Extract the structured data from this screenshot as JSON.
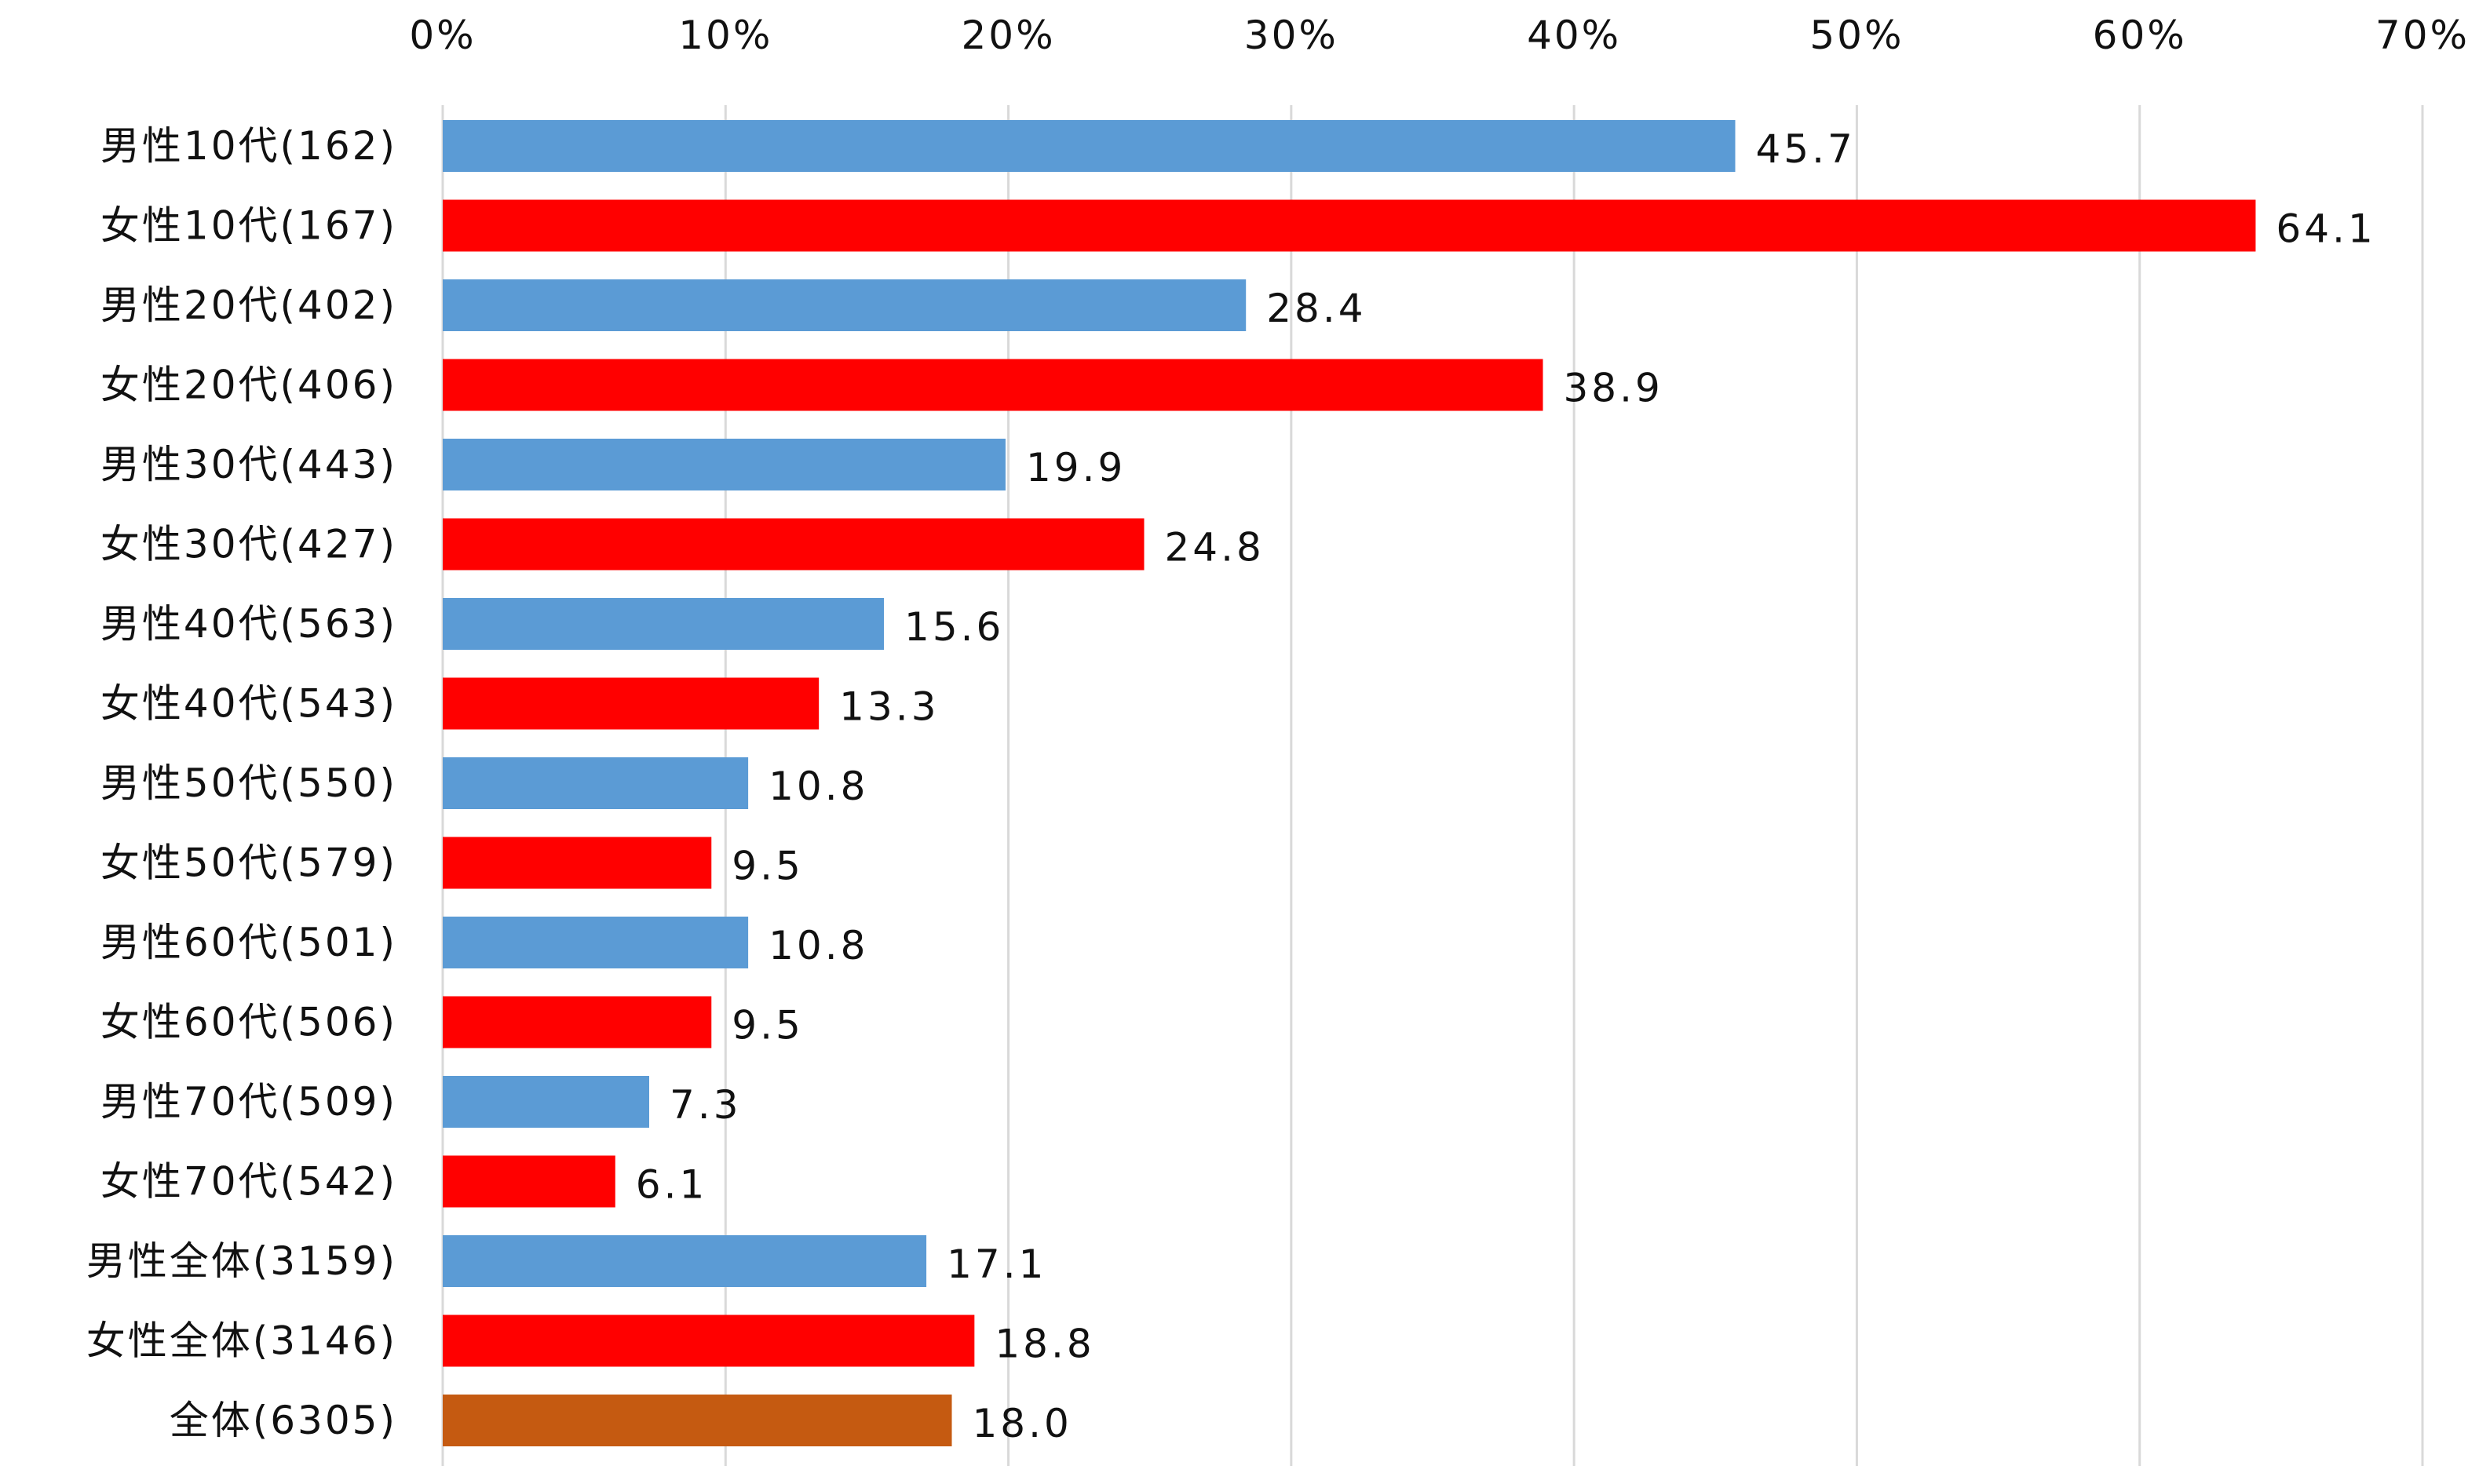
{
  "chart_data": {
    "type": "bar",
    "orientation": "horizontal",
    "title": "",
    "xlabel": "",
    "ylabel": "",
    "xlim": [
      0,
      70
    ],
    "x_ticks": [
      "0%",
      "10%",
      "20%",
      "30%",
      "40%",
      "50%",
      "60%",
      "70%"
    ],
    "x_axis_position": "top",
    "grid": "vertical",
    "legend": "none",
    "categories": [
      "男性10代(162)",
      "女性10代(167)",
      "男性20代(402)",
      "女性20代(406)",
      "男性30代(443)",
      "女性30代(427)",
      "男性40代(563)",
      "女性40代(543)",
      "男性50代(550)",
      "女性50代(579)",
      "男性60代(501)",
      "女性60代(506)",
      "男性70代(509)",
      "女性70代(542)",
      "男性全体(3159)",
      "女性全体(3146)",
      "全体(6305)"
    ],
    "values": [
      45.7,
      64.1,
      28.4,
      38.9,
      19.9,
      24.8,
      15.6,
      13.3,
      10.8,
      9.5,
      10.8,
      9.5,
      7.3,
      6.1,
      17.1,
      18.8,
      18.0
    ],
    "value_labels": [
      "45.7",
      "64.1",
      "28.4",
      "38.9",
      "19.9",
      "24.8",
      "15.6",
      "13.3",
      "10.8",
      "9.5",
      "10.8",
      "9.5",
      "7.3",
      "6.1",
      "17.1",
      "18.8",
      "18.0"
    ],
    "group": [
      "male",
      "female",
      "male",
      "female",
      "male",
      "female",
      "male",
      "female",
      "male",
      "female",
      "male",
      "female",
      "male",
      "female",
      "male",
      "female",
      "total"
    ],
    "colors": {
      "male": "#5b9bd5",
      "female": "#ff0000",
      "total": "#c55a11"
    }
  }
}
